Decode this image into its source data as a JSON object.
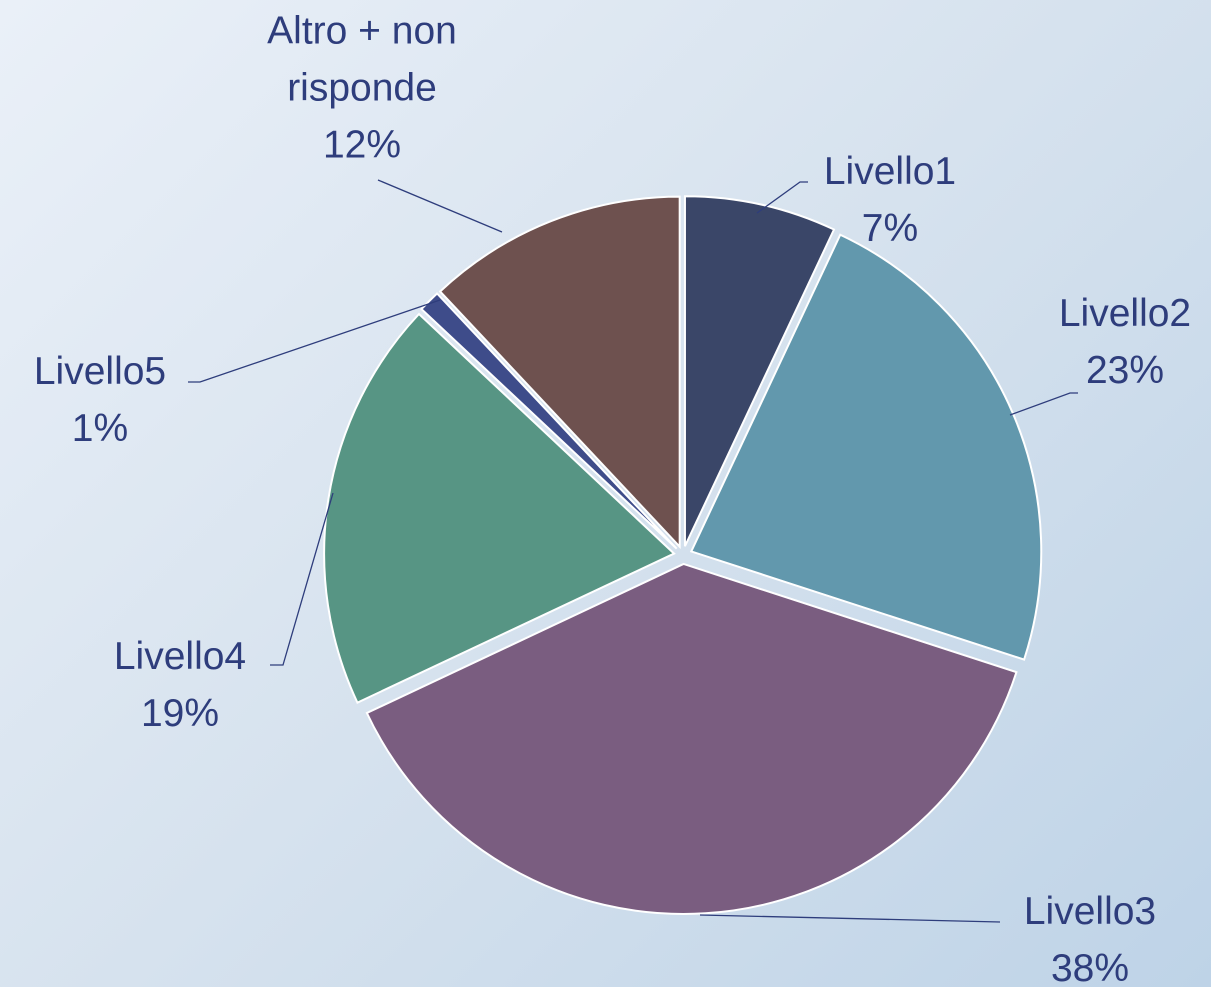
{
  "chart_data": {
    "type": "pie",
    "categories": [
      "Livello1",
      "Livello2",
      "Livello3",
      "Livello4",
      "Livello5",
      "Altro + non risponde"
    ],
    "values": [
      7,
      23,
      38,
      19,
      1,
      12
    ],
    "value_labels": [
      "7%",
      "23%",
      "38%",
      "19%",
      "1%",
      "12%"
    ],
    "colors": [
      "#3a4668",
      "#6298ad",
      "#7a5d80",
      "#579584",
      "#3e4c8a",
      "#6e514f"
    ]
  }
}
